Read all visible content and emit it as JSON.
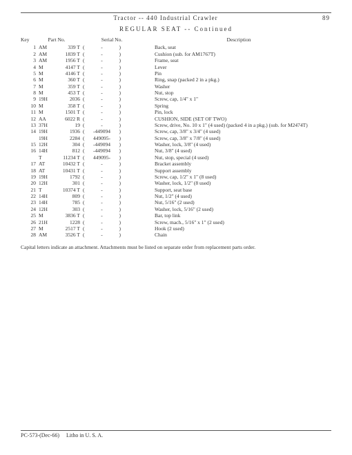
{
  "header": {
    "title": "Tractor -- 440 Industrial Crawler",
    "page_number": "89"
  },
  "section_title": "REGULAR  SEAT  --  Continued",
  "column_headers": {
    "key": "Key",
    "part_no": "Part No.",
    "serial_no": "Serial No.",
    "description": "Description"
  },
  "rows": [
    {
      "key": "1",
      "prefix": "AM",
      "partno": "339 T",
      "serial": "-",
      "desc": "Back, seat"
    },
    {
      "key": "2",
      "prefix": "AM",
      "partno": "1839 T",
      "serial": "-",
      "desc": "Cushion (sub. for AM1767T)"
    },
    {
      "key": "3",
      "prefix": "AM",
      "partno": "1956 T",
      "serial": "-",
      "desc": "Frame, seat"
    },
    {
      "key": "4",
      "prefix": "M",
      "partno": "4147 T",
      "serial": "-",
      "desc": "Lever"
    },
    {
      "key": "5",
      "prefix": "M",
      "partno": "4146 T",
      "serial": "-",
      "desc": "Pin"
    },
    {
      "key": "6",
      "prefix": "M",
      "partno": "360 T",
      "serial": "-",
      "desc": "Ring, snap (packed 2 in a pkg.)"
    },
    {
      "key": "7",
      "prefix": "M",
      "partno": "359 T",
      "serial": "-",
      "desc": "Washer"
    },
    {
      "key": "8",
      "prefix": "M",
      "partno": "453 T",
      "serial": "-",
      "desc": "Nut, stop"
    },
    {
      "key": "9",
      "prefix": "19H",
      "partno": "2036",
      "serial": "-",
      "desc": "Screw, cap, 1/4\" x 1\""
    },
    {
      "key": "10",
      "prefix": "M",
      "partno": "358 T",
      "serial": "-",
      "desc": "Spring"
    },
    {
      "key": "11",
      "prefix": "M",
      "partno": "1501 T",
      "serial": "-",
      "desc": "Pin, lock"
    },
    {
      "key": "12",
      "prefix": "AA",
      "partno": "6022 R",
      "serial": "-",
      "desc": "CUSHION, SIDE (SET OF TWO)"
    },
    {
      "key": "13",
      "prefix": "37H",
      "partno": "19",
      "serial": "-",
      "desc": "Screw, drive, No. 10 x 1\" (4 used) (packed 4 in a pkg.) (sub. for M2474T)"
    },
    {
      "key": "14",
      "prefix": "19H",
      "partno": "1936",
      "serial": "     -449094",
      "desc": "Screw, cap, 3/8\" x 3/4\" (4 used)"
    },
    {
      "key": "",
      "prefix": "19H",
      "partno": "2284",
      "serial": "449095-     ",
      "desc": "Screw, cap, 3/8\" x 7/8\" (4 used)"
    },
    {
      "key": "15",
      "prefix": "12H",
      "partno": "304",
      "serial": "     -449094",
      "desc": "Washer, lock, 3/8\" (4 used)"
    },
    {
      "key": "16",
      "prefix": "14H",
      "partno": "812",
      "serial": "     -449094",
      "desc": "Nut, 3/8\" (4 used)"
    },
    {
      "key": "",
      "prefix": "T",
      "partno": "11234 T",
      "serial": "449095-     ",
      "desc": "Nut, stop, special (4 used)"
    },
    {
      "key": "17",
      "prefix": "AT",
      "partno": "10432 T",
      "serial": "-",
      "desc": "Bracket assembly"
    },
    {
      "key": "18",
      "prefix": "AT",
      "partno": "10431 T",
      "serial": "-",
      "desc": "Support assembly"
    },
    {
      "key": "19",
      "prefix": "19H",
      "partno": "1792",
      "serial": "-",
      "desc": "Screw, cap, 1/2\" x 1\" (8 used)"
    },
    {
      "key": "20",
      "prefix": "12H",
      "partno": "301",
      "serial": "-",
      "desc": "Washer, lock, 1/2\" (8 used)"
    },
    {
      "key": "21",
      "prefix": "T",
      "partno": "10374 T",
      "serial": "-",
      "desc": "Support, seat base"
    },
    {
      "key": "22",
      "prefix": "14H",
      "partno": "809",
      "serial": "-",
      "desc": "Nut, 1/2\" (4 used)"
    },
    {
      "key": "23",
      "prefix": "14H",
      "partno": "785",
      "serial": "-",
      "desc": "Nut, 5/16\" (2 used)"
    },
    {
      "key": "24",
      "prefix": "12H",
      "partno": "303",
      "serial": "-",
      "desc": "Washer, lock, 5/16\" (2 used)"
    },
    {
      "key": "25",
      "prefix": "M",
      "partno": "3836 T",
      "serial": "-",
      "desc": "Bar, top link"
    },
    {
      "key": "26",
      "prefix": "21H",
      "partno": "1228",
      "serial": "-",
      "desc": "Screw, mach., 5/16\" x 1\" (2 used)"
    },
    {
      "key": "27",
      "prefix": "M",
      "partno": "2517 T",
      "serial": "-",
      "desc": "Hook (2 used)"
    },
    {
      "key": "28",
      "prefix": "AM",
      "partno": "3526 T",
      "serial": "-",
      "desc": "Chain"
    }
  ],
  "footnote": "Capital letters indicate an attachment. Attachments must be listed on separate order from replacement parts order.",
  "footer": {
    "left": "PC-573-(Dec-66)",
    "right": "Litho in U. S. A."
  }
}
